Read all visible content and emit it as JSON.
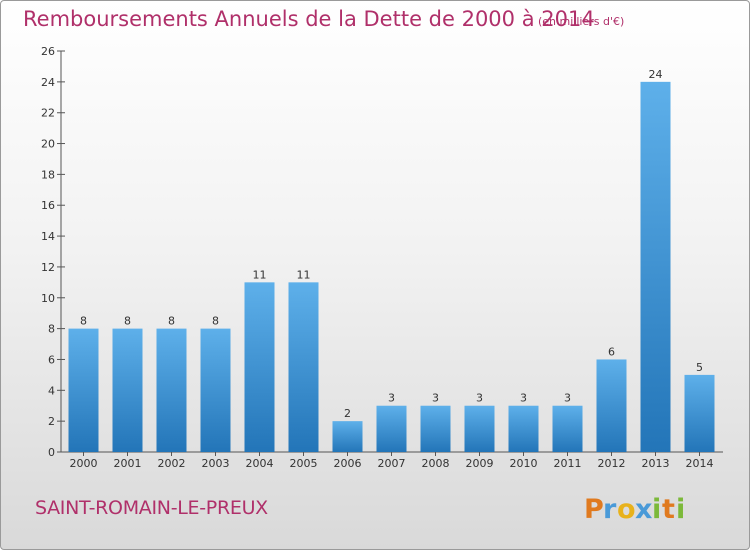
{
  "header": {
    "title": "Remboursements Annuels de la Dette de 2000 à 2014",
    "unit": "(en milliers d'€)"
  },
  "footer": {
    "town": "SAINT-ROMAIN-LE-PREUX",
    "logo_text": "Proxiti"
  },
  "colors": {
    "title": "#b0306a",
    "bar_light": "#5eb0ea",
    "bar_dark": "#2375b8",
    "axis": "#555555"
  },
  "chart_data": {
    "type": "bar",
    "title": "Remboursements Annuels de la Dette de 2000 à 2014",
    "categories": [
      "2000",
      "2001",
      "2002",
      "2003",
      "2004",
      "2005",
      "2006",
      "2007",
      "2008",
      "2009",
      "2010",
      "2011",
      "2012",
      "2013",
      "2014"
    ],
    "values": [
      8,
      8,
      8,
      8,
      11,
      11,
      2,
      3,
      3,
      3,
      3,
      3,
      6,
      24,
      5
    ],
    "ylim": [
      0,
      26
    ],
    "yticks": [
      0,
      2,
      4,
      6,
      8,
      10,
      12,
      14,
      16,
      18,
      20,
      22,
      24,
      26
    ],
    "grid": false,
    "legend": "none"
  }
}
